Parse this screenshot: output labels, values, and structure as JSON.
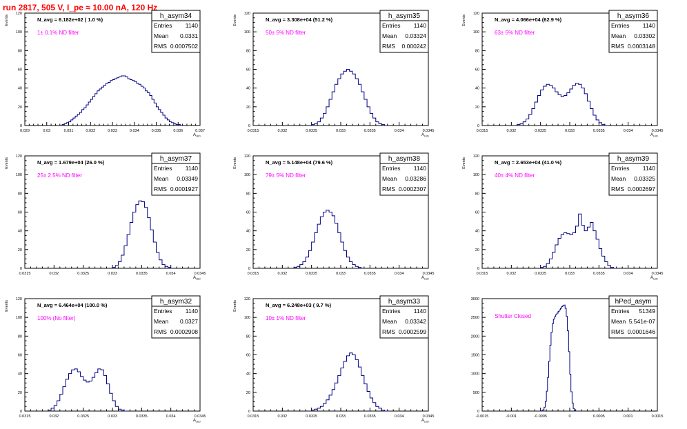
{
  "run_title": "run 2817,   505 V, I_pe ≈ 10.00 nA, 120 Hz",
  "stats_labels": {
    "entries": "Entries",
    "mean": "Mean",
    "rms": "RMS"
  },
  "colors": {
    "hist": "#000080",
    "annotation": "#ff00ff",
    "title": "#ff0000",
    "frame": "#000000"
  },
  "chart_data": [
    {
      "type": "histogram",
      "name": "h_asym34",
      "navg": "N_avg = 6.182e+02 ( 1.0 %)",
      "filter": "1± 0.1% ND filter",
      "entries": "1140",
      "mean": "0.0331",
      "rms": "0.0007502",
      "ylabel": "Events",
      "xlabel": "A_LED",
      "xlim": [
        0.029,
        0.037
      ],
      "ylim": [
        0,
        120
      ],
      "xticks": [
        "0.029",
        "0.03",
        "0.031",
        "0.032",
        "0.033",
        "0.034",
        "0.035",
        "0.036",
        "0.037"
      ],
      "yticks": [
        "0",
        "20",
        "40",
        "60",
        "80",
        "100",
        "120"
      ],
      "bins": {
        "start": 0.0307,
        "width": 0.0001,
        "counts": [
          1,
          2,
          3,
          4,
          6,
          8,
          10,
          12,
          14,
          17,
          19,
          22,
          25,
          28,
          31,
          34,
          37,
          39,
          41,
          43,
          45,
          46,
          48,
          49,
          50,
          51,
          52,
          53,
          53,
          52,
          50,
          49,
          48,
          47,
          45,
          44,
          42,
          40,
          37,
          35,
          32,
          28,
          24,
          20,
          17,
          14,
          11,
          8,
          6,
          4,
          3,
          2,
          1,
          1,
          0
        ]
      }
    },
    {
      "type": "histogram",
      "name": "h_asym35",
      "navg": "N_avg = 3.308e+04 (51.2 %)",
      "filter": "50± 5% ND filter",
      "entries": "1140",
      "mean": "0.03324",
      "rms": "0.000242",
      "ylabel": "Events",
      "xlabel": "A_LED",
      "xlim": [
        0.0315,
        0.0345
      ],
      "ylim": [
        0,
        120
      ],
      "xticks": [
        "0.0315",
        "0.032",
        "0.0325",
        "0.033",
        "0.0335",
        "0.034",
        "0.0345"
      ],
      "yticks": [
        "0",
        "20",
        "40",
        "60",
        "80",
        "100",
        "120"
      ],
      "bins": {
        "start": 0.0325,
        "width": 5e-05,
        "counts": [
          1,
          2,
          4,
          8,
          13,
          20,
          28,
          36,
          44,
          50,
          55,
          58,
          60,
          58,
          55,
          50,
          44,
          36,
          28,
          20,
          13,
          8,
          4,
          2,
          1,
          0
        ]
      }
    },
    {
      "type": "histogram",
      "name": "h_asym36",
      "navg": "N_avg = 4.066e+04 (62.9 %)",
      "filter": "63± 5% ND filter",
      "entries": "1140",
      "mean": "0.03302",
      "rms": "0.0003148",
      "ylabel": "Events",
      "xlabel": "A_LED",
      "xlim": [
        0.0315,
        0.0345
      ],
      "ylim": [
        0,
        120
      ],
      "xticks": [
        "0.0315",
        "0.032",
        "0.0325",
        "0.033",
        "0.0335",
        "0.034",
        "0.0345"
      ],
      "yticks": [
        "0",
        "20",
        "40",
        "60",
        "80",
        "100",
        "120"
      ],
      "bins": {
        "start": 0.0321,
        "width": 5e-05,
        "counts": [
          1,
          2,
          4,
          7,
          12,
          18,
          25,
          32,
          38,
          42,
          44,
          43,
          40,
          36,
          33,
          31,
          32,
          35,
          39,
          43,
          45,
          44,
          40,
          34,
          26,
          18,
          11,
          6,
          3,
          1,
          0
        ]
      }
    },
    {
      "type": "histogram",
      "name": "h_asym37",
      "navg": "N_avg = 1.679e+04 (26.0 %)",
      "filter": "25± 2.5% ND filter",
      "entries": "1140",
      "mean": "0.03349",
      "rms": "0.0001927",
      "ylabel": "Events",
      "xlabel": "A_LED",
      "xlim": [
        0.0315,
        0.0345
      ],
      "ylim": [
        0,
        120
      ],
      "xticks": [
        "0.0315",
        "0.032",
        "0.0325",
        "0.033",
        "0.0335",
        "0.034",
        "0.0345"
      ],
      "yticks": [
        "0",
        "20",
        "40",
        "60",
        "80",
        "100",
        "120"
      ],
      "bins": {
        "start": 0.033,
        "width": 5e-05,
        "counts": [
          1,
          3,
          7,
          14,
          24,
          36,
          49,
          60,
          68,
          72,
          71,
          65,
          54,
          41,
          28,
          17,
          9,
          4,
          2,
          1,
          0
        ]
      }
    },
    {
      "type": "histogram",
      "name": "h_asym38",
      "navg": "N_avg = 5.148e+04 (79.6 %)",
      "filter": "79± 5% ND filter",
      "entries": "1140",
      "mean": "0.03286",
      "rms": "0.0002307",
      "ylabel": "Events",
      "xlabel": "A_LED",
      "xlim": [
        0.0315,
        0.0345
      ],
      "ylim": [
        0,
        120
      ],
      "xticks": [
        "0.0315",
        "0.032",
        "0.0325",
        "0.033",
        "0.0335",
        "0.034",
        "0.0345"
      ],
      "yticks": [
        "0",
        "20",
        "40",
        "60",
        "80",
        "100",
        "120"
      ],
      "bins": {
        "start": 0.0322,
        "width": 5e-05,
        "counts": [
          1,
          2,
          4,
          7,
          12,
          19,
          28,
          38,
          47,
          55,
          60,
          62,
          60,
          56,
          48,
          38,
          28,
          19,
          12,
          7,
          4,
          2,
          1,
          0
        ]
      }
    },
    {
      "type": "histogram",
      "name": "h_asym39",
      "navg": "N_avg = 2.653e+04 (41.0 %)",
      "filter": "40± 4% ND filter",
      "entries": "1140",
      "mean": "0.03325",
      "rms": "0.0002697",
      "ylabel": "Events",
      "xlabel": "A_LED",
      "xlim": [
        0.0315,
        0.0345
      ],
      "ylim": [
        0,
        120
      ],
      "xticks": [
        "0.0315",
        "0.032",
        "0.0325",
        "0.033",
        "0.0335",
        "0.034",
        "0.0345"
      ],
      "yticks": [
        "0",
        "20",
        "40",
        "60",
        "80",
        "100",
        "120"
      ],
      "bins": {
        "start": 0.0325,
        "width": 5e-05,
        "counts": [
          1,
          2,
          5,
          10,
          17,
          25,
          32,
          36,
          38,
          37,
          36,
          38,
          45,
          58,
          46,
          40,
          44,
          49,
          40,
          31,
          21,
          13,
          7,
          3,
          1,
          0
        ]
      }
    },
    {
      "type": "histogram",
      "name": "h_asym32",
      "navg": "N_avg = 6.464e+04 (100.0 %)",
      "filter": "100% (No filter)",
      "entries": "1140",
      "mean": "0.0327",
      "rms": "0.0002908",
      "ylabel": "Events",
      "xlabel": "A_LED",
      "xlim": [
        0.0315,
        0.0345
      ],
      "ylim": [
        0,
        120
      ],
      "xticks": [
        "0.0315",
        "0.032",
        "0.0325",
        "0.033",
        "0.0335",
        "0.034",
        "0.0345"
      ],
      "yticks": [
        "0",
        "20",
        "40",
        "60",
        "80",
        "100",
        "120"
      ],
      "bins": {
        "start": 0.0319,
        "width": 5e-05,
        "counts": [
          1,
          3,
          6,
          11,
          18,
          26,
          34,
          40,
          44,
          45,
          42,
          37,
          33,
          31,
          32,
          36,
          41,
          45,
          44,
          38,
          29,
          19,
          11,
          5,
          2,
          1,
          0
        ]
      }
    },
    {
      "type": "histogram",
      "name": "h_asym33",
      "navg": "N_avg = 6.248e+03 ( 9.7 %)",
      "filter": "10± 1% ND filter",
      "entries": "1140",
      "mean": "0.03342",
      "rms": "0.0002599",
      "ylabel": "Events",
      "xlabel": "A_LED",
      "xlim": [
        0.0315,
        0.0345
      ],
      "ylim": [
        0,
        120
      ],
      "xticks": [
        "0.0315",
        "0.032",
        "0.0325",
        "0.033",
        "0.0335",
        "0.034",
        "0.0345"
      ],
      "yticks": [
        "0",
        "20",
        "40",
        "60",
        "80",
        "100",
        "120"
      ],
      "bins": {
        "start": 0.0325,
        "width": 5e-05,
        "counts": [
          1,
          2,
          3,
          5,
          8,
          12,
          17,
          23,
          30,
          38,
          46,
          53,
          59,
          62,
          60,
          55,
          47,
          38,
          29,
          21,
          14,
          9,
          5,
          3,
          1,
          0
        ]
      }
    },
    {
      "type": "histogram",
      "name": "hPed_asym",
      "navg": "",
      "filter": "Shutter Closed",
      "entries": "51349",
      "mean": "5.541e-07",
      "rms": "0.0001646",
      "ylabel": "",
      "xlabel": "",
      "xlim": [
        -0.0015,
        0.0015
      ],
      "ylim": [
        0,
        3500
      ],
      "xticks": [
        "-0.0015",
        "-0.001",
        "-0.0005",
        "0",
        "0.0005",
        "0.001",
        "0.0015"
      ],
      "yticks": [
        "0",
        "500",
        "1000",
        "1500",
        "2000",
        "2500",
        "3000"
      ],
      "bins": {
        "start": -0.0005,
        "width": 2e-05,
        "counts": [
          2,
          10,
          40,
          120,
          300,
          620,
          1050,
          1550,
          2050,
          2450,
          2720,
          2860,
          2940,
          3000,
          3050,
          3100,
          3150,
          3200,
          3250,
          3280,
          3300,
          3200,
          2950,
          2500,
          1850,
          1150,
          600,
          250,
          80,
          20,
          5,
          0
        ]
      }
    }
  ]
}
